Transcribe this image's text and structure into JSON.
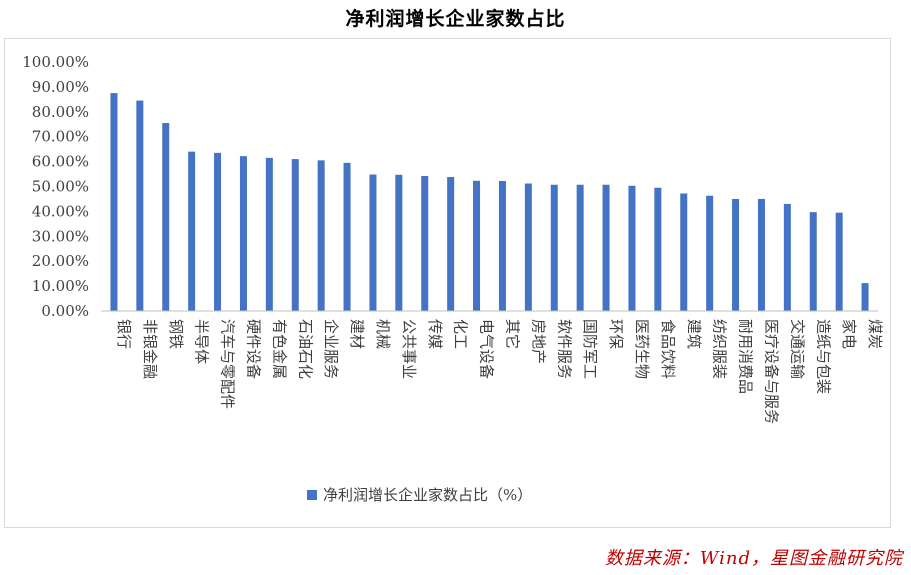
{
  "chart_data": {
    "type": "bar",
    "title": "净利润增长企业家数占比",
    "series": [
      {
        "name": "净利润增长企业家数占比（%）",
        "color": "#4472C4",
        "values": [
          87.5,
          84.5,
          75.5,
          64.0,
          63.5,
          62.2,
          61.5,
          61.0,
          60.5,
          59.5,
          54.8,
          54.7,
          54.2,
          53.8,
          52.3,
          52.2,
          51.2,
          50.7,
          50.7,
          50.7,
          50.3,
          49.5,
          47.2,
          46.3,
          45.0,
          45.0,
          43.0,
          39.7,
          39.5,
          11.2
        ]
      }
    ],
    "categories": [
      "银行",
      "非银金融",
      "钢铁",
      "半导体",
      "汽车与零配件",
      "硬件设备",
      "有色金属",
      "石油石化",
      "企业服务",
      "建材",
      "机械",
      "公共事业",
      "传媒",
      "化工",
      "电气设备",
      "其它",
      "房地产",
      "软件服务",
      "国防军工",
      "环保",
      "医药生物",
      "食品饮料",
      "建筑",
      "纺织服装",
      "耐用消费品",
      "医疗设备与服务",
      "交通运输",
      "造纸与包装",
      "家电",
      "煤炭"
    ],
    "yticks": [
      "0.00%",
      "10.00%",
      "20.00%",
      "30.00%",
      "40.00%",
      "50.00%",
      "60.00%",
      "70.00%",
      "80.00%",
      "90.00%",
      "100.00%"
    ],
    "ylim": [
      0,
      100
    ],
    "legend_label": "净利润增长企业家数占比（%）",
    "legend_position": "bottom",
    "grid": false,
    "xlabel": "",
    "ylabel": ""
  },
  "source_note": "数据来源：Wind，星图金融研究院"
}
